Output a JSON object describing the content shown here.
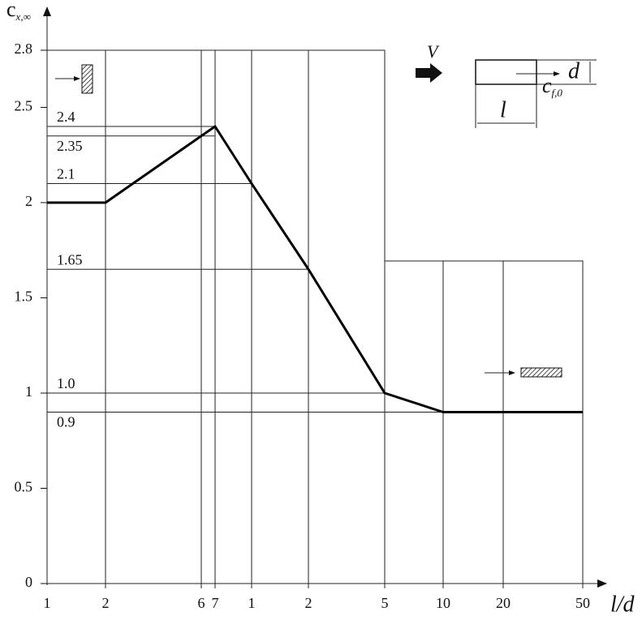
{
  "chart_data": {
    "type": "line",
    "y_label": "c",
    "y_label_sub": "x,∞",
    "x_label": "l/d",
    "categories": [
      "1",
      "2",
      "6",
      "7",
      "1",
      "2",
      "5",
      "10",
      "20",
      "50"
    ],
    "values": [
      2,
      2,
      2.35,
      2.4,
      2.1,
      1.65,
      1.0,
      0.9,
      0.9,
      0.9
    ],
    "color": "#000000",
    "ylim": [
      0,
      2.8
    ],
    "yticks": [
      0,
      0.5,
      1,
      1.5,
      2,
      2.5,
      2.8
    ],
    "reference_lines": [
      2.4,
      2.35,
      2.1,
      1.65,
      {
        "value": 1,
        "label": "1.0"
      },
      0.9
    ],
    "grid": true,
    "annotations": {
      "wind": "V",
      "depth": "d",
      "length": "l",
      "coef": "c",
      "coef_sub": "f,0"
    }
  }
}
